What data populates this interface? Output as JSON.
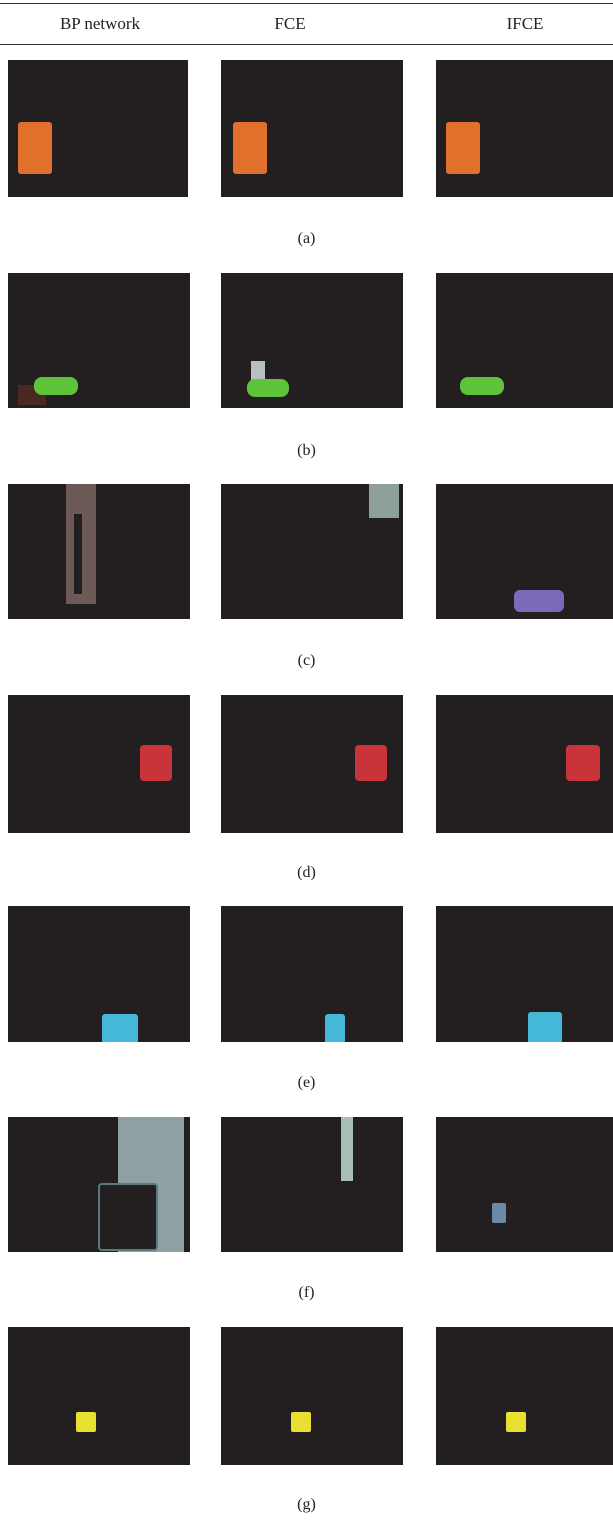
{
  "table": {
    "columns": [
      "BP network",
      "FCE",
      "IFCE"
    ]
  },
  "rows": [
    {
      "caption": "(a)"
    },
    {
      "caption": "(b)"
    },
    {
      "caption": "(c)"
    },
    {
      "caption": "(d)"
    },
    {
      "caption": "(e)"
    },
    {
      "caption": "(f)"
    },
    {
      "caption": "(g)"
    }
  ],
  "colors": {
    "panel_background": "#231f20",
    "orange_object": "#e0702c",
    "green_object": "#5ec43a",
    "red_object": "#c8343a",
    "cyan_object": "#45b8d8",
    "yellow_object": "#e8e030",
    "purple_object": "#7a6ab8"
  }
}
